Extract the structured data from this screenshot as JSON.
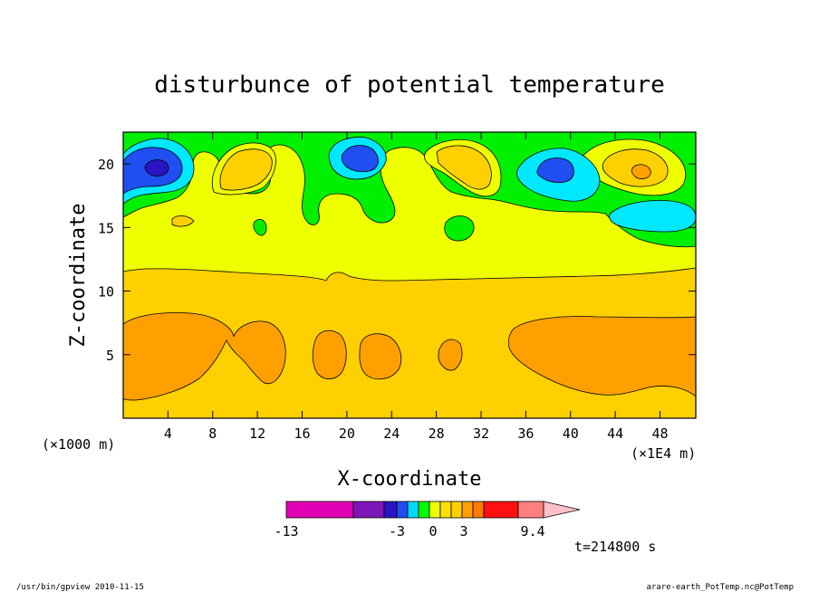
{
  "chart_data": {
    "type": "heatmap",
    "subtype": "filled-contour",
    "title": "disturbunce of potential temperature",
    "xlabel": "X-coordinate",
    "ylabel": "Z-coordinate",
    "x_unit_left": "(×1000 m)",
    "x_unit_right": "(×1E4 m)",
    "x_ticks": [
      "4",
      "8",
      "12",
      "16",
      "20",
      "24",
      "28",
      "32",
      "36",
      "40",
      "44",
      "48"
    ],
    "y_ticks": [
      "5",
      "10",
      "15",
      "20"
    ],
    "xlim": [
      0,
      51.2
    ],
    "ylim": [
      0,
      22.5
    ],
    "colorbar": {
      "labels": [
        "-13",
        "-3",
        "0",
        "3",
        "9.4"
      ],
      "colors": [
        "#e000b4",
        "#7c16b8",
        "#2b14c4",
        "#1f4ff0",
        "#00d8ff",
        "#00ff00",
        "#eeff00",
        "#ffe000",
        "#ffcf00",
        "#ffa000",
        "#ff7a00",
        "#ff1010",
        "#ff7f7f",
        "#ffc0c8"
      ]
    },
    "levels": [
      {
        "name": "deep-blue",
        "color": "#1f4ff0"
      },
      {
        "name": "cyan",
        "color": "#00e8ff"
      },
      {
        "name": "green",
        "color": "#00f000"
      },
      {
        "name": "yellow",
        "color": "#eeff00"
      },
      {
        "name": "gold",
        "color": "#ffd000"
      },
      {
        "name": "orange",
        "color": "#ffa000"
      }
    ],
    "grid": false
  },
  "time_label": "t=214800 s",
  "footer": {
    "left": "/usr/bin/gpview   2010-11-15",
    "right": "arare-earth_PotTemp.nc@PotTemp"
  }
}
